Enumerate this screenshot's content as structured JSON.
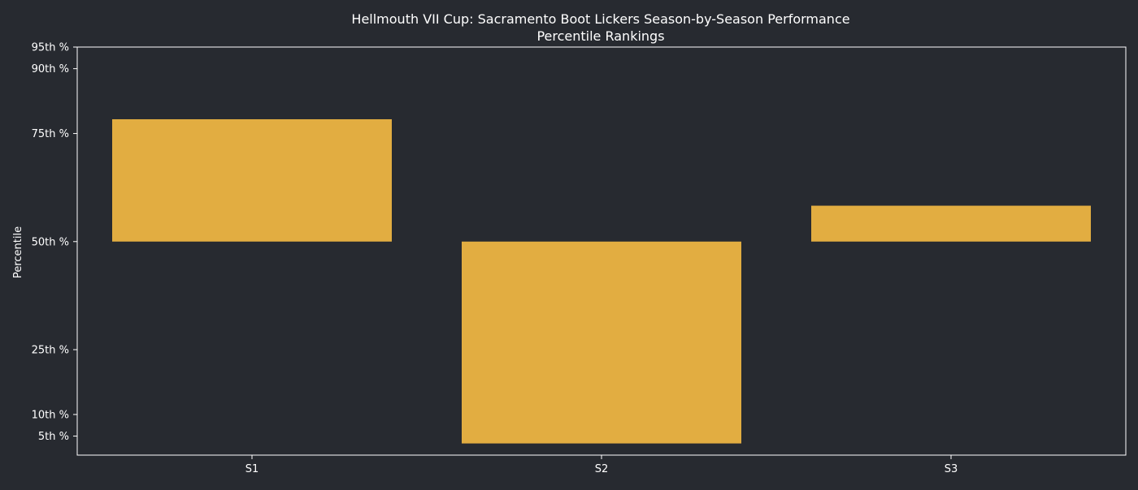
{
  "chart_data": {
    "type": "bar",
    "title": "Hellmouth VII Cup: Sacramento Boot Lickers Season-by-Season Performance",
    "subtitle": "Percentile Rankings",
    "xlabel": "",
    "ylabel": "Percentile",
    "baseline": 50,
    "ylim": [
      0.6,
      95
    ],
    "categories": [
      "S1",
      "S2",
      "S3"
    ],
    "values": [
      78.3,
      3.3,
      58.3
    ],
    "yticks": [
      {
        "value": 5,
        "label": "5th %"
      },
      {
        "value": 10,
        "label": "10th %"
      },
      {
        "value": 25,
        "label": "25th %"
      },
      {
        "value": 50,
        "label": "50th %"
      },
      {
        "value": 75,
        "label": "75th %"
      },
      {
        "value": 90,
        "label": "90th %"
      },
      {
        "value": 95,
        "label": "95th %"
      }
    ],
    "grid": false,
    "legend": "none",
    "colors": {
      "bar": "#e2ad41",
      "background": "#272a30",
      "axis": "#ffffff",
      "text": "#ffffff"
    }
  }
}
